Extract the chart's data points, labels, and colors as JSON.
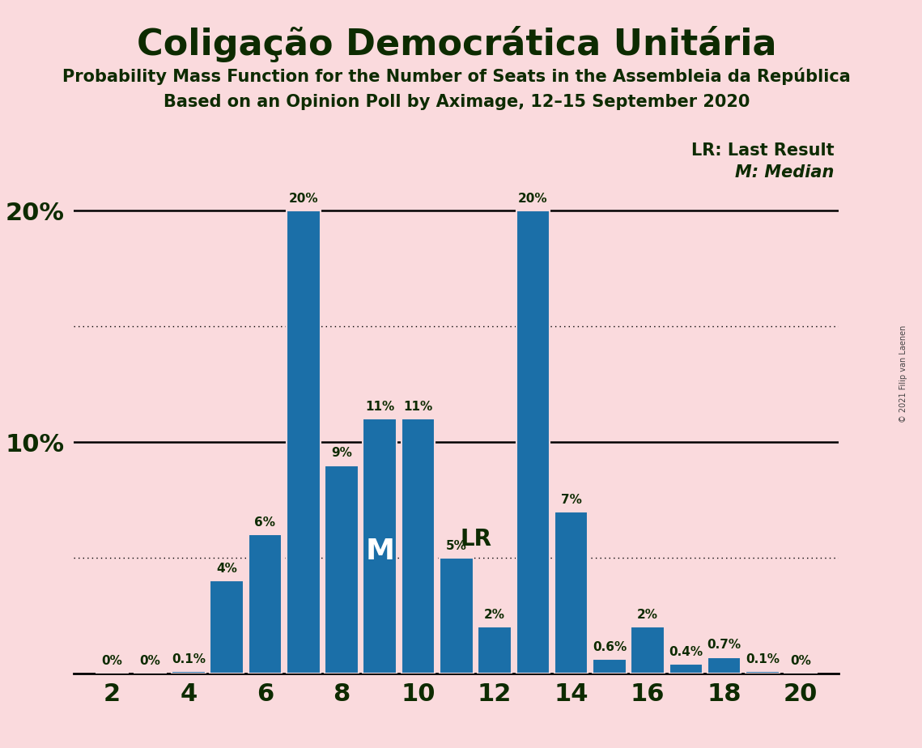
{
  "title": "Coligação Democrática Unitária",
  "subtitle1": "Probability Mass Function for the Number of Seats in the Assembleia da República",
  "subtitle2": "Based on an Opinion Poll by Aximage, 12–15 September 2020",
  "copyright": "© 2021 Filip van Laenen",
  "background_color": "#FADADD",
  "bar_color": "#1B6FA8",
  "seats": [
    2,
    3,
    4,
    5,
    6,
    7,
    8,
    9,
    10,
    11,
    12,
    13,
    14,
    15,
    16,
    17,
    18,
    19,
    20
  ],
  "probabilities": [
    0.0,
    0.0,
    0.1,
    4.0,
    6.0,
    20.0,
    9.0,
    11.0,
    11.0,
    5.0,
    2.0,
    20.0,
    7.0,
    0.6,
    2.0,
    0.4,
    0.7,
    0.1,
    0.0
  ],
  "labels": [
    "0%",
    "0%",
    "0.1%",
    "4%",
    "6%",
    "20%",
    "9%",
    "11%",
    "11%",
    "5%",
    "2%",
    "20%",
    "7%",
    "0.6%",
    "2%",
    "0.4%",
    "0.7%",
    "0.1%",
    "0%"
  ],
  "median_seat": 9,
  "last_result_seat": 11,
  "ylim_max": 22,
  "dotted_lines": [
    5,
    15
  ],
  "solid_lines": [
    10,
    20
  ],
  "legend_lr": "LR: Last Result",
  "legend_m": "M: Median",
  "title_color": "#0D2B00",
  "bar_edge_color": "#FADADD"
}
